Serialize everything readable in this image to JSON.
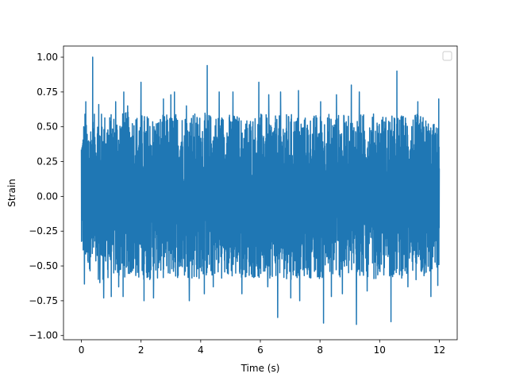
{
  "chart_data": {
    "type": "line",
    "title": "",
    "xlabel": "Time (s)",
    "ylabel": "Strain",
    "xlim": [
      -0.6,
      12.6
    ],
    "ylim": [
      -1.03,
      1.08
    ],
    "x_ticks": [
      {
        "value": 0,
        "label": "0"
      },
      {
        "value": 2,
        "label": "2"
      },
      {
        "value": 4,
        "label": "4"
      },
      {
        "value": 6,
        "label": "6"
      },
      {
        "value": 8,
        "label": "8"
      },
      {
        "value": 10,
        "label": "10"
      },
      {
        "value": 12,
        "label": "12"
      }
    ],
    "y_ticks": [
      {
        "value": 1.0,
        "label": "1.00"
      },
      {
        "value": 0.75,
        "label": "0.75"
      },
      {
        "value": 0.5,
        "label": "0.50"
      },
      {
        "value": 0.25,
        "label": "0.25"
      },
      {
        "value": 0.0,
        "label": "0.00"
      },
      {
        "value": -0.25,
        "label": "−0.25"
      },
      {
        "value": -0.5,
        "label": "−0.50"
      },
      {
        "value": -0.75,
        "label": "−0.75"
      },
      {
        "value": -1.0,
        "label": "−1.00"
      }
    ],
    "grid": false,
    "legend": {
      "placement": "top-right",
      "entries": []
    },
    "series": [
      {
        "color": "#1f77b4",
        "x_start": 0,
        "x_end": 12.0,
        "envelope": {
          "x": [
            0,
            0.5,
            1,
            1.5,
            2,
            2.5,
            3,
            3.5,
            4,
            4.5,
            5,
            5.5,
            6,
            6.5,
            7,
            7.5,
            8,
            8.5,
            9,
            9.5,
            10,
            10.5,
            11,
            11.5,
            12
          ],
          "upper": [
            0.48,
            0.61,
            0.6,
            0.61,
            0.6,
            0.58,
            0.6,
            0.61,
            0.6,
            0.6,
            0.6,
            0.58,
            0.6,
            0.58,
            0.6,
            0.58,
            0.6,
            0.6,
            0.58,
            0.6,
            0.6,
            0.58,
            0.6,
            0.58,
            0.5
          ],
          "lower": [
            -0.45,
            -0.6,
            -0.6,
            -0.58,
            -0.6,
            -0.6,
            -0.58,
            -0.6,
            -0.6,
            -0.58,
            -0.6,
            -0.58,
            -0.6,
            -0.58,
            -0.6,
            -0.58,
            -0.6,
            -0.58,
            -0.6,
            -0.58,
            -0.6,
            -0.58,
            -0.6,
            -0.6,
            -0.55
          ]
        },
        "peaks": [
          {
            "x": 0.08,
            "y": 0.5
          },
          {
            "x": 0.12,
            "y": 0.59
          },
          {
            "x": 0.15,
            "y": 0.68
          },
          {
            "x": 0.38,
            "y": 1.0
          },
          {
            "x": 0.58,
            "y": 0.66
          },
          {
            "x": 1.15,
            "y": 0.68
          },
          {
            "x": 1.42,
            "y": 0.75
          },
          {
            "x": 1.55,
            "y": 0.65
          },
          {
            "x": 2.0,
            "y": 0.82
          },
          {
            "x": 2.75,
            "y": 0.7
          },
          {
            "x": 3.0,
            "y": 0.73
          },
          {
            "x": 3.12,
            "y": 0.75
          },
          {
            "x": 3.52,
            "y": 0.65
          },
          {
            "x": 4.22,
            "y": 0.94
          },
          {
            "x": 4.62,
            "y": 0.75
          },
          {
            "x": 5.08,
            "y": 0.75
          },
          {
            "x": 5.95,
            "y": 0.82
          },
          {
            "x": 6.28,
            "y": 0.73
          },
          {
            "x": 6.68,
            "y": 0.75
          },
          {
            "x": 7.28,
            "y": 0.76
          },
          {
            "x": 8.02,
            "y": 0.68
          },
          {
            "x": 8.55,
            "y": 0.73
          },
          {
            "x": 9.05,
            "y": 0.8
          },
          {
            "x": 9.32,
            "y": 0.75
          },
          {
            "x": 10.58,
            "y": 0.9
          },
          {
            "x": 10.95,
            "y": 0.72
          },
          {
            "x": 11.28,
            "y": 0.68
          },
          {
            "x": 11.98,
            "y": 0.7
          }
        ],
        "troughs": [
          {
            "x": 0.1,
            "y": -0.63
          },
          {
            "x": 0.62,
            "y": -0.62
          },
          {
            "x": 0.75,
            "y": -0.73
          },
          {
            "x": 1.0,
            "y": -0.72
          },
          {
            "x": 1.25,
            "y": -0.65
          },
          {
            "x": 1.4,
            "y": -0.72
          },
          {
            "x": 2.1,
            "y": -0.75
          },
          {
            "x": 2.42,
            "y": -0.73
          },
          {
            "x": 3.62,
            "y": -0.75
          },
          {
            "x": 4.12,
            "y": -0.7
          },
          {
            "x": 4.42,
            "y": -0.65
          },
          {
            "x": 5.38,
            "y": -0.7
          },
          {
            "x": 6.25,
            "y": -0.65
          },
          {
            "x": 6.58,
            "y": -0.87
          },
          {
            "x": 7.02,
            "y": -0.73
          },
          {
            "x": 7.32,
            "y": -0.75
          },
          {
            "x": 8.12,
            "y": -0.91
          },
          {
            "x": 8.38,
            "y": -0.72
          },
          {
            "x": 8.75,
            "y": -0.7
          },
          {
            "x": 9.22,
            "y": -0.92
          },
          {
            "x": 9.58,
            "y": -0.68
          },
          {
            "x": 10.38,
            "y": -0.9
          },
          {
            "x": 10.95,
            "y": -0.65
          },
          {
            "x": 11.72,
            "y": -0.72
          },
          {
            "x": 11.95,
            "y": -0.64
          }
        ]
      }
    ]
  }
}
